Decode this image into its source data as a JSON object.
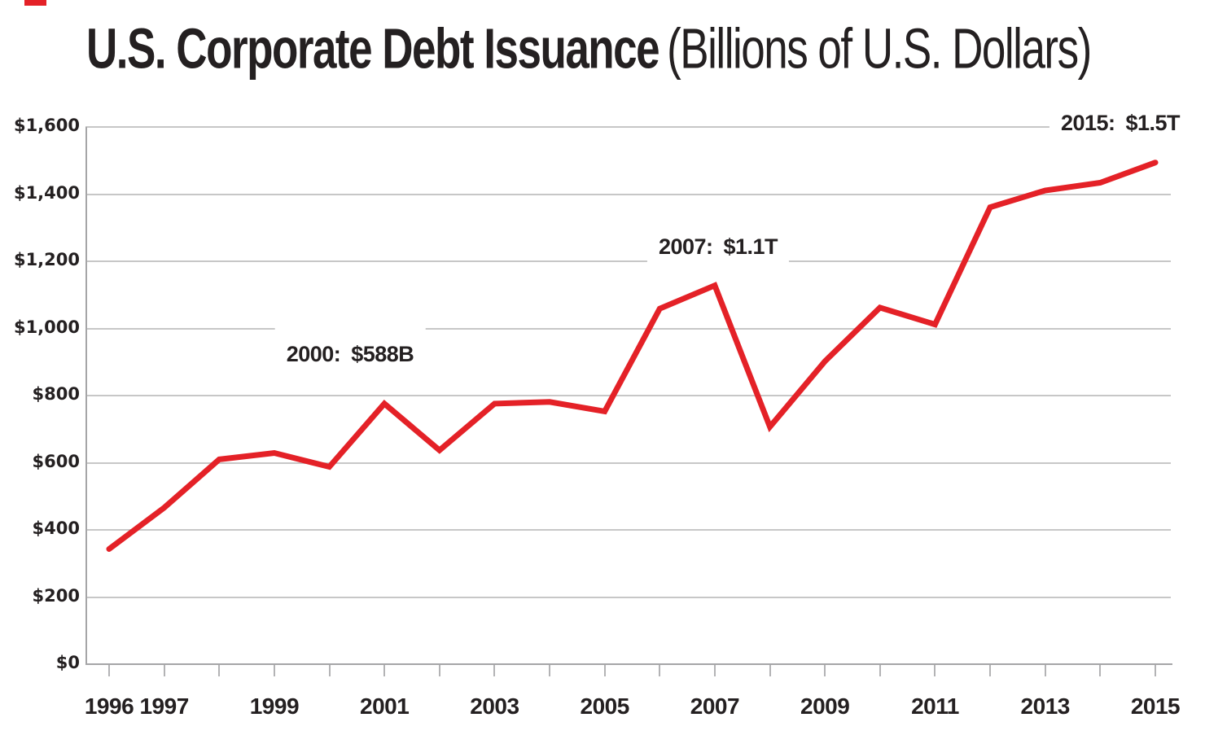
{
  "title": {
    "main": "U.S. Corporate Debt Issuance",
    "sub": "(Billions of U.S. Dollars)"
  },
  "colors": {
    "line": "#e42127",
    "grid": "#c7c7c7",
    "axis": "#a5a5a7",
    "text": "#242021",
    "background": "#ffffff",
    "accent_mark": "#e42127"
  },
  "chart_data": {
    "type": "line",
    "title": "U.S. Corporate Debt Issuance (Billions of U.S. Dollars)",
    "xlabel": "",
    "ylabel": "",
    "x": [
      1996,
      1997,
      1998,
      1999,
      2000,
      2001,
      2002,
      2003,
      2004,
      2005,
      2006,
      2007,
      2008,
      2009,
      2010,
      2011,
      2012,
      2013,
      2014,
      2015
    ],
    "values": [
      343,
      466,
      610,
      629,
      588,
      776,
      637,
      776,
      781,
      753,
      1059,
      1128,
      707,
      902,
      1062,
      1012,
      1361,
      1411,
      1434,
      1494
    ],
    "series_name": "U.S. corporate debt issuance ($B)",
    "ylim": [
      0,
      1600
    ],
    "y_tick_interval": 200,
    "y_tick_labels": [
      "$0",
      "$200",
      "$400",
      "$600",
      "$800",
      "$1,000",
      "$1,200",
      "$1,400",
      "$1,600"
    ],
    "x_tick_labels": [
      "1996",
      "1997",
      "1999",
      "2001",
      "2003",
      "2005",
      "2007",
      "2009",
      "2011",
      "2013",
      "2015"
    ],
    "grid": true,
    "legend": "none",
    "line_color": "#e42127",
    "annotations": [
      {
        "x": 2000,
        "value": 588,
        "text": "2000: $588B"
      },
      {
        "x": 2007,
        "value": 1128,
        "text": "2007: $1.1T"
      },
      {
        "x": 2015,
        "value": 1494,
        "text": "2015: $1.5T"
      }
    ]
  }
}
